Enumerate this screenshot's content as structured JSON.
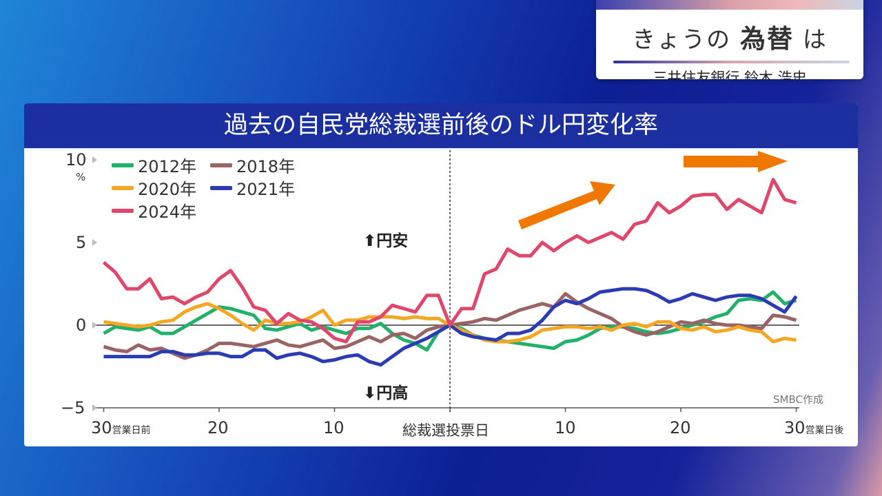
{
  "card": {
    "title_prefix": "きょうの",
    "title_bold": "為替",
    "title_suffix": "は",
    "subtitle": "三井住友銀行 鈴木 浩史"
  },
  "colors": {
    "background": "#0c1f93",
    "header": "#1b2fa0",
    "arrow": "#f07800",
    "zero_line": "#333333"
  },
  "chart_data": {
    "type": "line",
    "title": "過去の自民党総裁選前後のドル円変化率",
    "ylabel": "%",
    "ylim": [
      -5,
      10
    ],
    "yticks": [
      "10",
      "5",
      "0",
      "−5"
    ],
    "x": [
      -30,
      -29,
      -28,
      -27,
      -26,
      -25,
      -24,
      -23,
      -22,
      -21,
      -20,
      -19,
      -18,
      -17,
      -16,
      -15,
      -14,
      -13,
      -12,
      -11,
      -10,
      -9,
      -8,
      -7,
      -6,
      -5,
      -4,
      -3,
      -2,
      -1,
      0,
      1,
      2,
      3,
      4,
      5,
      6,
      7,
      8,
      9,
      10,
      11,
      12,
      13,
      14,
      15,
      16,
      17,
      18,
      19,
      20,
      21,
      22,
      23,
      24,
      25,
      26,
      27,
      28,
      29,
      30
    ],
    "xticks": {
      "left_30": "30",
      "left_30_unit": "営業日前",
      "left_20": "20",
      "left_10": "10",
      "zero": "総裁選投票日",
      "right_10": "10",
      "right_20": "20",
      "right_30": "30",
      "right_30_unit": "営業日後"
    },
    "annotations": {
      "up": "円安",
      "down": "円高",
      "source": "SMBC作成"
    },
    "legend_position": "top-left",
    "series": [
      {
        "name": "2012年",
        "color": "#22b16a",
        "values": [
          -0.5,
          -0.1,
          -0.2,
          -0.3,
          -0.1,
          -0.5,
          -0.5,
          -0.1,
          0.3,
          0.7,
          1.1,
          1.0,
          0.8,
          0.6,
          -0.2,
          -0.3,
          -0.1,
          0.1,
          -0.3,
          -0.1,
          -0.3,
          -0.5,
          -0.2,
          -0.2,
          0.1,
          -0.5,
          -0.9,
          -1.1,
          -1.5,
          -0.4,
          0,
          -0.2,
          -0.6,
          -0.8,
          -0.9,
          -1.0,
          -1.1,
          -1.2,
          -1.3,
          -1.4,
          -1.0,
          -0.9,
          -0.6,
          -0.2,
          -0.1,
          -0.1,
          -0.2,
          -0.4,
          -0.5,
          -0.4,
          -0.2,
          0.0,
          0.2,
          0.5,
          0.7,
          1.5,
          1.6,
          1.5,
          2.0,
          1.3,
          1.5
        ]
      },
      {
        "name": "2018年",
        "color": "#9a6464",
        "values": [
          -1.3,
          -1.5,
          -1.6,
          -1.2,
          -1.5,
          -1.4,
          -1.7,
          -2.0,
          -1.8,
          -1.5,
          -1.1,
          -1.1,
          -1.2,
          -1.3,
          -1.1,
          -0.9,
          -1.2,
          -1.3,
          -1.1,
          -0.9,
          -1.4,
          -1.3,
          -1.0,
          -0.7,
          -1.0,
          -0.6,
          -0.5,
          -0.8,
          -0.3,
          -0.1,
          0,
          0.1,
          0.2,
          0.4,
          0.3,
          0.6,
          0.9,
          1.1,
          1.3,
          1.1,
          1.9,
          1.4,
          1.0,
          0.7,
          0.4,
          -0.1,
          -0.4,
          -0.6,
          -0.4,
          -0.1,
          0.2,
          0.1,
          0.3,
          0.1,
          0.0,
          0.0,
          -0.1,
          -0.2,
          0.6,
          0.5,
          0.3
        ]
      },
      {
        "name": "2020年",
        "color": "#f5a623",
        "values": [
          0.2,
          0.1,
          0.0,
          -0.1,
          0.0,
          0.2,
          0.3,
          0.8,
          1.1,
          1.3,
          1.0,
          0.6,
          0.1,
          -0.3,
          0.3,
          0.1,
          0.1,
          0.2,
          0.5,
          0.9,
          0.0,
          0.3,
          0.3,
          0.5,
          0.5,
          0.5,
          0.4,
          0.5,
          0.4,
          0.4,
          0,
          -0.3,
          -0.6,
          -0.9,
          -1.0,
          -1.0,
          -0.9,
          -0.7,
          -0.3,
          -0.2,
          -0.1,
          -0.1,
          -0.2,
          -0.1,
          -0.3,
          0.0,
          0.1,
          -0.1,
          0.2,
          0.2,
          -0.2,
          -0.3,
          -0.1,
          -0.4,
          -0.3,
          -0.1,
          -0.3,
          -0.4,
          -1.0,
          -0.8,
          -0.9
        ]
      },
      {
        "name": "2021年",
        "color": "#2b3bb3",
        "values": [
          -1.9,
          -1.9,
          -1.9,
          -1.9,
          -1.9,
          -1.6,
          -1.6,
          -1.8,
          -1.8,
          -1.7,
          -1.7,
          -1.9,
          -1.9,
          -1.5,
          -1.5,
          -2.0,
          -1.8,
          -1.7,
          -1.9,
          -2.2,
          -2.1,
          -1.9,
          -1.8,
          -2.2,
          -2.4,
          -1.9,
          -1.4,
          -1.1,
          -0.8,
          -0.4,
          0,
          -0.5,
          -0.7,
          -0.8,
          -0.9,
          -0.5,
          -0.5,
          -0.3,
          0.3,
          1.1,
          1.5,
          1.3,
          1.6,
          2.0,
          2.1,
          2.2,
          2.2,
          2.1,
          1.8,
          1.4,
          1.6,
          1.9,
          1.7,
          1.5,
          1.7,
          1.8,
          1.8,
          1.6,
          1.2,
          0.8,
          1.75
        ]
      },
      {
        "name": "2024年",
        "color": "#e0476a",
        "values": [
          3.8,
          3.2,
          2.2,
          2.2,
          2.8,
          1.6,
          1.7,
          1.3,
          1.7,
          2.0,
          2.8,
          3.3,
          2.3,
          1.1,
          0.9,
          0.1,
          0.7,
          0.3,
          0.2,
          -0.2,
          -0.8,
          -1.0,
          0.2,
          0.2,
          0.5,
          1.2,
          1.0,
          0.8,
          1.8,
          1.8,
          0,
          1.0,
          1.0,
          3.1,
          3.4,
          4.6,
          4.2,
          4.2,
          5.0,
          4.5,
          5.0,
          5.4,
          5.0,
          5.3,
          5.6,
          5.2,
          6.1,
          6.3,
          7.4,
          6.8,
          7.2,
          7.8,
          7.9,
          7.9,
          7.0,
          7.6,
          7.2,
          6.8,
          8.8,
          7.6,
          7.4
        ]
      }
    ]
  }
}
